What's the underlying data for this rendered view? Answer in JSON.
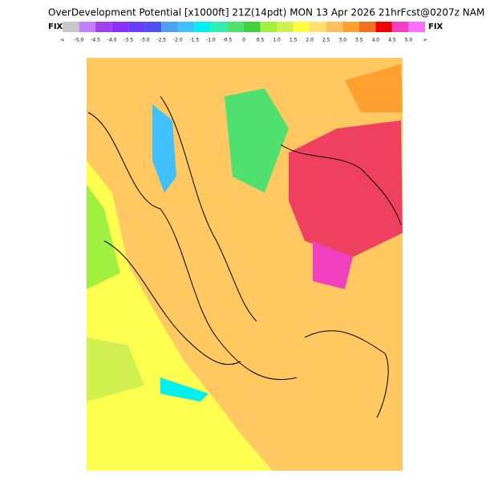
{
  "header": {
    "title": "OverDevelopment Potential [x1000ft] 21Z(14pdt) MON 13 Apr 2026 21hrFcst@0207z NAM",
    "left_label": "FIX",
    "right_label": "FIX"
  },
  "legend": {
    "labels": [
      "<",
      "-5.0",
      "-4.5",
      "-4.0",
      "-3.5",
      "-3.0",
      "-2.5",
      "-2.0",
      "-1.5",
      "-1.0",
      "-0.5",
      "0",
      "0.5",
      "1.0",
      "1.5",
      "2.0",
      "2.5",
      "3.0",
      "3.5",
      "4.0",
      "4.5",
      "5.0",
      ">"
    ],
    "colors": [
      "#c8c8c8",
      "#c080ff",
      "#a040f0",
      "#8c30ff",
      "#6a3cff",
      "#5050f0",
      "#50a0f0",
      "#40c0ff",
      "#00f0f0",
      "#30f0b0",
      "#50e070",
      "#40d040",
      "#a0f040",
      "#d0f050",
      "#ffff40",
      "#ffe070",
      "#ffc060",
      "#ffa030",
      "#f07020",
      "#f00000",
      "#f040c0",
      "#ff70ff"
    ]
  }
}
